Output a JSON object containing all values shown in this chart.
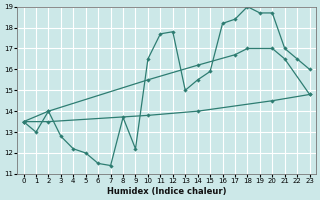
{
  "xlabel": "Humidex (Indice chaleur)",
  "xlim": [
    -0.5,
    23.5
  ],
  "ylim": [
    11,
    19
  ],
  "xticks": [
    0,
    1,
    2,
    3,
    4,
    5,
    6,
    7,
    8,
    9,
    10,
    11,
    12,
    13,
    14,
    15,
    16,
    17,
    18,
    19,
    20,
    21,
    22,
    23
  ],
  "yticks": [
    11,
    12,
    13,
    14,
    15,
    16,
    17,
    18,
    19
  ],
  "bg_color": "#cce8e8",
  "grid_color": "#ffffff",
  "line_color": "#2e7d72",
  "line1_x": [
    0,
    1,
    2,
    3,
    4,
    5,
    6,
    7,
    8,
    9,
    10,
    11,
    12,
    13,
    14,
    15,
    16,
    17,
    18,
    19,
    20,
    21,
    22,
    23
  ],
  "line1_y": [
    13.5,
    13.0,
    14.0,
    12.8,
    12.2,
    12.0,
    11.5,
    11.4,
    13.7,
    12.2,
    16.5,
    17.7,
    17.8,
    15.0,
    15.5,
    15.9,
    18.2,
    18.4,
    19.0,
    18.7,
    18.7,
    17.0,
    16.5,
    16.0
  ],
  "line2_x": [
    0,
    2,
    10,
    14,
    17,
    18,
    20,
    21,
    23
  ],
  "line2_y": [
    13.5,
    14.0,
    15.5,
    16.2,
    16.7,
    17.0,
    17.0,
    16.5,
    14.8
  ],
  "line3_x": [
    0,
    2,
    10,
    14,
    20,
    23
  ],
  "line3_y": [
    13.5,
    13.5,
    13.8,
    14.0,
    14.5,
    14.8
  ]
}
